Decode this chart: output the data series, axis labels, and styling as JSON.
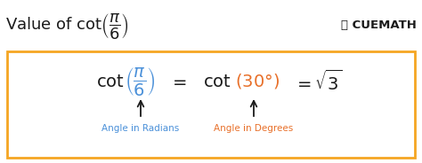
{
  "bg_color": "#ffffff",
  "box_color": "#f5a623",
  "title_color": "#1a1a1a",
  "blue_color": "#4a90d9",
  "orange_color": "#e8702a",
  "black_color": "#1a1a1a",
  "label_radians": "Angle in Radians",
  "label_degrees": "Angle in Degrees",
  "fig_width": 4.74,
  "fig_height": 1.84,
  "dpi": 100
}
